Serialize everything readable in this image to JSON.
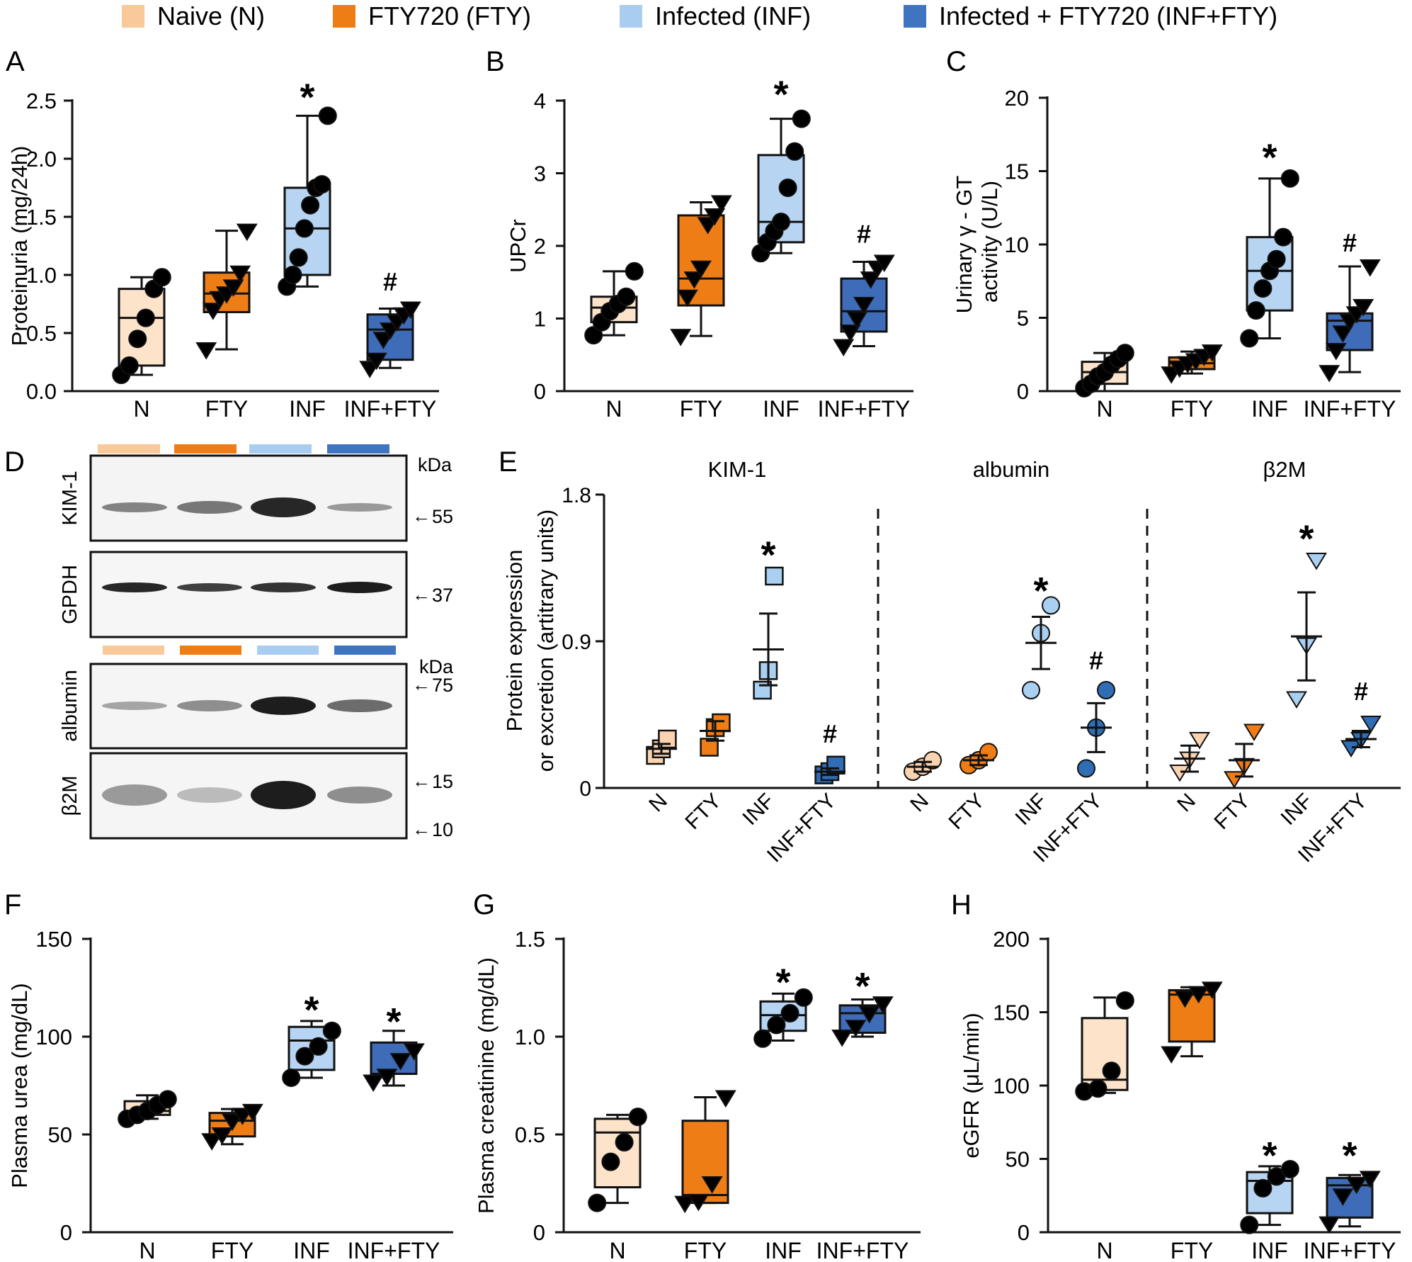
{
  "legend": [
    {
      "label": "Naive (N)",
      "color": "#F9C99A"
    },
    {
      "label": "FTY720 (FTY)",
      "color": "#EE7D16"
    },
    {
      "label": "Infected (INF)",
      "color": "#A8CDF0"
    },
    {
      "label": "Infected + FTY720 (INF+FTY)",
      "color": "#3F74C0"
    }
  ],
  "colors": {
    "N": "#FCE3CA",
    "FTY": "#EE7D16",
    "INF": "#B7D5F2",
    "INFFTY": "#3F6CB8",
    "N_marker": "#FAD3B0",
    "FTY_marker": "#EE7D16",
    "INF_marker": "#A9D0F1",
    "INFFTY_marker": "#2F6DB5"
  },
  "chart_data": [
    {
      "panel": "A",
      "type": "box",
      "ylabel": "Proteinuria (mg/24h)",
      "ylim": [
        0,
        2.5
      ],
      "yticks": [
        "0.0",
        "0.5",
        "1.0",
        "1.5",
        "2.0",
        "2.5"
      ],
      "categories": [
        "N",
        "FTY",
        "INF",
        "INF+FTY"
      ],
      "groups": [
        {
          "name": "N",
          "marker": "circle",
          "q1": 0.22,
          "median": 0.63,
          "q3": 0.88,
          "min": 0.14,
          "max": 0.98,
          "points": [
            0.14,
            0.22,
            0.45,
            0.63,
            0.88,
            0.98
          ]
        },
        {
          "name": "FTY",
          "marker": "triangle",
          "q1": 0.68,
          "median": 0.84,
          "q3": 1.02,
          "min": 0.36,
          "max": 1.38,
          "points": [
            0.36,
            0.7,
            0.8,
            0.84,
            0.9,
            1.02,
            1.38
          ]
        },
        {
          "name": "INF",
          "marker": "circle",
          "q1": 1.0,
          "median": 1.4,
          "q3": 1.75,
          "min": 0.9,
          "max": 2.37,
          "points": [
            0.9,
            1.0,
            1.15,
            1.4,
            1.6,
            1.75,
            1.78,
            2.37
          ]
        },
        {
          "name": "INF+FTY",
          "marker": "triangle",
          "q1": 0.27,
          "median": 0.53,
          "q3": 0.66,
          "min": 0.2,
          "max": 0.71,
          "points": [
            0.2,
            0.27,
            0.45,
            0.53,
            0.6,
            0.66,
            0.71
          ]
        }
      ],
      "annotations": [
        {
          "group": "INF",
          "text": "*",
          "y": 2.6
        },
        {
          "group": "INF+FTY",
          "text": "#",
          "y": 0.95
        }
      ]
    },
    {
      "panel": "B",
      "type": "box",
      "ylabel": "UPCr",
      "ylim": [
        0,
        4
      ],
      "yticks": [
        "0",
        "1",
        "2",
        "3",
        "4"
      ],
      "categories": [
        "N",
        "FTY",
        "INF",
        "INF+FTY"
      ],
      "groups": [
        {
          "name": "N",
          "marker": "circle",
          "q1": 0.95,
          "median": 1.15,
          "q3": 1.3,
          "min": 0.77,
          "max": 1.65,
          "points": [
            0.77,
            0.95,
            1.1,
            1.2,
            1.3,
            1.65
          ]
        },
        {
          "name": "FTY",
          "marker": "triangle",
          "q1": 1.18,
          "median": 1.55,
          "q3": 2.42,
          "min": 0.76,
          "max": 2.6,
          "points": [
            0.76,
            1.3,
            1.55,
            1.7,
            2.3,
            2.42,
            2.6
          ]
        },
        {
          "name": "INF",
          "marker": "circle",
          "q1": 2.05,
          "median": 2.33,
          "q3": 3.25,
          "min": 1.9,
          "max": 3.75,
          "points": [
            1.9,
            2.05,
            2.2,
            2.33,
            2.8,
            3.3,
            3.75
          ]
        },
        {
          "name": "INF+FTY",
          "marker": "triangle",
          "q1": 0.82,
          "median": 1.1,
          "q3": 1.55,
          "min": 0.62,
          "max": 1.78,
          "points": [
            0.62,
            0.82,
            1.0,
            1.2,
            1.55,
            1.7,
            1.78
          ]
        }
      ],
      "annotations": [
        {
          "group": "INF",
          "text": "*",
          "y": 4.2
        },
        {
          "group": "INF+FTY",
          "text": "#",
          "y": 2.18
        }
      ]
    },
    {
      "panel": "C",
      "type": "box",
      "ylabel": "Urinary γ - GT",
      "ylabel2": "activity (U/L)",
      "ylim": [
        0,
        20
      ],
      "yticks": [
        "0",
        "5",
        "10",
        "15",
        "20"
      ],
      "categories": [
        "N",
        "FTY",
        "INF",
        "INF+FTY"
      ],
      "groups": [
        {
          "name": "N",
          "marker": "circle",
          "q1": 0.5,
          "median": 1.3,
          "q3": 2.0,
          "min": 0.0,
          "max": 2.6,
          "points": [
            0.2,
            0.5,
            1.0,
            1.3,
            1.8,
            2.2,
            2.6
          ]
        },
        {
          "name": "FTY",
          "marker": "triangle",
          "q1": 1.5,
          "median": 1.9,
          "q3": 2.3,
          "min": 1.2,
          "max": 2.7,
          "points": [
            1.2,
            1.6,
            1.9,
            2.1,
            2.4,
            2.7
          ]
        },
        {
          "name": "INF",
          "marker": "circle",
          "q1": 5.5,
          "median": 8.2,
          "q3": 10.5,
          "min": 3.6,
          "max": 14.5,
          "points": [
            3.6,
            5.5,
            7.0,
            8.2,
            9.0,
            10.5,
            14.5
          ]
        },
        {
          "name": "INF+FTY",
          "marker": "triangle",
          "q1": 2.8,
          "median": 4.8,
          "q3": 5.3,
          "min": 1.3,
          "max": 8.5,
          "points": [
            1.3,
            2.8,
            4.0,
            4.8,
            5.3,
            5.8,
            8.5
          ]
        }
      ],
      "annotations": [
        {
          "group": "INF",
          "text": "*",
          "y": 16.5
        },
        {
          "group": "INF+FTY",
          "text": "#",
          "y": 10.2
        }
      ]
    },
    {
      "panel": "E",
      "type": "scatter",
      "ylabel": "Protein expression",
      "ylabel2": "or excretion (artitrary units)",
      "ylim": [
        0,
        1.8
      ],
      "yticks": [
        "0",
        "0.9",
        "1.8"
      ],
      "categories": [
        "N",
        "FTY",
        "INF",
        "INF+FTY"
      ],
      "subpanels": [
        {
          "title": "KIM-1",
          "marker": "square",
          "groups": [
            {
              "name": "N",
              "mean": 0.24,
              "sem": 0.03,
              "points": [
                0.2,
                0.24,
                0.3
              ]
            },
            {
              "name": "FTY",
              "mean": 0.35,
              "sem": 0.06,
              "points": [
                0.25,
                0.37,
                0.4
              ]
            },
            {
              "name": "INF",
              "mean": 0.85,
              "sem": 0.22,
              "points": [
                0.6,
                0.72,
                1.3
              ]
            },
            {
              "name": "INF+FTY",
              "mean": 0.1,
              "sem": 0.02,
              "points": [
                0.08,
                0.1,
                0.14
              ]
            }
          ],
          "annotations": [
            {
              "group": "INF",
              "text": "*",
              "y": 1.48
            },
            {
              "group": "INF+FTY",
              "text": "#",
              "y": 0.34
            }
          ]
        },
        {
          "title": "albumin",
          "marker": "circle",
          "groups": [
            {
              "name": "N",
              "mean": 0.13,
              "sem": 0.03,
              "points": [
                0.1,
                0.13,
                0.17
              ]
            },
            {
              "name": "FTY",
              "mean": 0.17,
              "sem": 0.03,
              "points": [
                0.14,
                0.17,
                0.22
              ]
            },
            {
              "name": "INF",
              "mean": 0.89,
              "sem": 0.16,
              "points": [
                0.6,
                0.95,
                1.12
              ]
            },
            {
              "name": "INF+FTY",
              "mean": 0.37,
              "sem": 0.15,
              "points": [
                0.12,
                0.37,
                0.6
              ]
            }
          ],
          "annotations": [
            {
              "group": "INF",
              "text": "*",
              "y": 1.26
            },
            {
              "group": "INF+FTY",
              "text": "#",
              "y": 0.79
            }
          ]
        },
        {
          "title": "β2M",
          "marker": "triangle-down",
          "groups": [
            {
              "name": "N",
              "mean": 0.18,
              "sem": 0.08,
              "points": [
                0.1,
                0.18,
                0.3
              ]
            },
            {
              "name": "FTY",
              "mean": 0.17,
              "sem": 0.1,
              "points": [
                0.06,
                0.14,
                0.35
              ]
            },
            {
              "name": "INF",
              "mean": 0.93,
              "sem": 0.27,
              "points": [
                0.55,
                0.88,
                1.4
              ]
            },
            {
              "name": "INF+FTY",
              "mean": 0.3,
              "sem": 0.05,
              "points": [
                0.25,
                0.3,
                0.4
              ]
            }
          ],
          "annotations": [
            {
              "group": "INF",
              "text": "*",
              "y": 1.58
            },
            {
              "group": "INF+FTY",
              "text": "#",
              "y": 0.6
            }
          ]
        }
      ]
    },
    {
      "panel": "F",
      "type": "box",
      "ylabel": "Plasma urea (mg/dL)",
      "ylim": [
        0,
        150
      ],
      "yticks": [
        "0",
        "50",
        "100",
        "150"
      ],
      "categories": [
        "N",
        "FTY",
        "INF",
        "INF+FTY"
      ],
      "groups": [
        {
          "name": "N",
          "marker": "circle",
          "q1": 60,
          "median": 62,
          "q3": 67,
          "min": 58,
          "max": 70,
          "points": [
            58,
            60,
            62,
            65,
            68
          ]
        },
        {
          "name": "FTY",
          "marker": "triangle",
          "q1": 49,
          "median": 57,
          "q3": 61,
          "min": 45,
          "max": 63,
          "points": [
            47,
            50,
            57,
            60,
            62
          ]
        },
        {
          "name": "INF",
          "marker": "circle",
          "q1": 83,
          "median": 98,
          "q3": 105,
          "min": 79,
          "max": 108,
          "points": [
            79,
            90,
            95,
            103
          ]
        },
        {
          "name": "INF+FTY",
          "marker": "triangle",
          "q1": 81,
          "median": 81,
          "q3": 97,
          "min": 75,
          "max": 103,
          "points": [
            77,
            80,
            88,
            93
          ]
        }
      ],
      "annotations": [
        {
          "group": "INF",
          "text": "*",
          "y": 118
        },
        {
          "group": "INF+FTY",
          "text": "*",
          "y": 112
        }
      ]
    },
    {
      "panel": "G",
      "type": "box",
      "ylabel": "Plasma creatinine (mg/dL)",
      "ylim": [
        0,
        1.5
      ],
      "yticks": [
        "0",
        "0.5",
        "1.0",
        "1.5"
      ],
      "categories": [
        "N",
        "FTY",
        "INF",
        "INF+FTY"
      ],
      "groups": [
        {
          "name": "N",
          "marker": "circle",
          "q1": 0.23,
          "median": 0.51,
          "q3": 0.58,
          "min": 0.15,
          "max": 0.6,
          "points": [
            0.15,
            0.36,
            0.46,
            0.59
          ]
        },
        {
          "name": "FTY",
          "marker": "triangle",
          "q1": 0.15,
          "median": 0.19,
          "q3": 0.57,
          "min": 0.15,
          "max": 0.69,
          "points": [
            0.15,
            0.16,
            0.25,
            0.69
          ]
        },
        {
          "name": "INF",
          "marker": "circle",
          "q1": 1.03,
          "median": 1.11,
          "q3": 1.18,
          "min": 0.98,
          "max": 1.22,
          "points": [
            0.99,
            1.06,
            1.12,
            1.2
          ]
        },
        {
          "name": "INF+FTY",
          "marker": "triangle",
          "q1": 1.02,
          "median": 1.12,
          "q3": 1.16,
          "min": 1.0,
          "max": 1.19,
          "points": [
            1.0,
            1.05,
            1.12,
            1.17
          ]
        }
      ],
      "annotations": [
        {
          "group": "INF",
          "text": "*",
          "y": 1.32
        },
        {
          "group": "INF+FTY",
          "text": "*",
          "y": 1.3
        }
      ]
    },
    {
      "panel": "H",
      "type": "box",
      "ylabel": "eGFR (μL/min)",
      "ylim": [
        0,
        200
      ],
      "yticks": [
        "0",
        "50",
        "100",
        "150",
        "200"
      ],
      "categories": [
        "N",
        "FTY",
        "INF",
        "INF+FTY"
      ],
      "groups": [
        {
          "name": "N",
          "marker": "circle",
          "q1": 97,
          "median": 104,
          "q3": 146,
          "min": 95,
          "max": 160,
          "points": [
            96,
            98,
            110,
            158
          ]
        },
        {
          "name": "FTY",
          "marker": "triangle",
          "q1": 130,
          "median": 162,
          "q3": 165,
          "min": 120,
          "max": 167,
          "points": [
            122,
            160,
            163,
            166
          ]
        },
        {
          "name": "INF",
          "marker": "circle",
          "q1": 13,
          "median": 35,
          "q3": 41,
          "min": 5,
          "max": 45,
          "points": [
            5,
            30,
            38,
            43
          ]
        },
        {
          "name": "INF+FTY",
          "marker": "triangle",
          "q1": 10,
          "median": 32,
          "q3": 37,
          "min": 4,
          "max": 39,
          "points": [
            6,
            25,
            33,
            37
          ]
        }
      ],
      "annotations": [
        {
          "group": "INF",
          "text": "*",
          "y": 58
        },
        {
          "group": "INF+FTY",
          "text": "*",
          "y": 58
        }
      ]
    }
  ],
  "panel_labels": {
    "A": "A",
    "B": "B",
    "C": "C",
    "D": "D",
    "E": "E",
    "F": "F",
    "G": "G",
    "H": "H"
  },
  "western_blot": {
    "unit": "kDa",
    "top": {
      "rows": [
        {
          "label": "KIM-1",
          "marker": "55"
        },
        {
          "label": "GPDH",
          "marker": "37"
        }
      ]
    },
    "bottom": {
      "rows": [
        {
          "label": "albumin",
          "marker": "75"
        },
        {
          "label": "β2M",
          "markers": [
            "15",
            "10"
          ]
        }
      ]
    }
  }
}
